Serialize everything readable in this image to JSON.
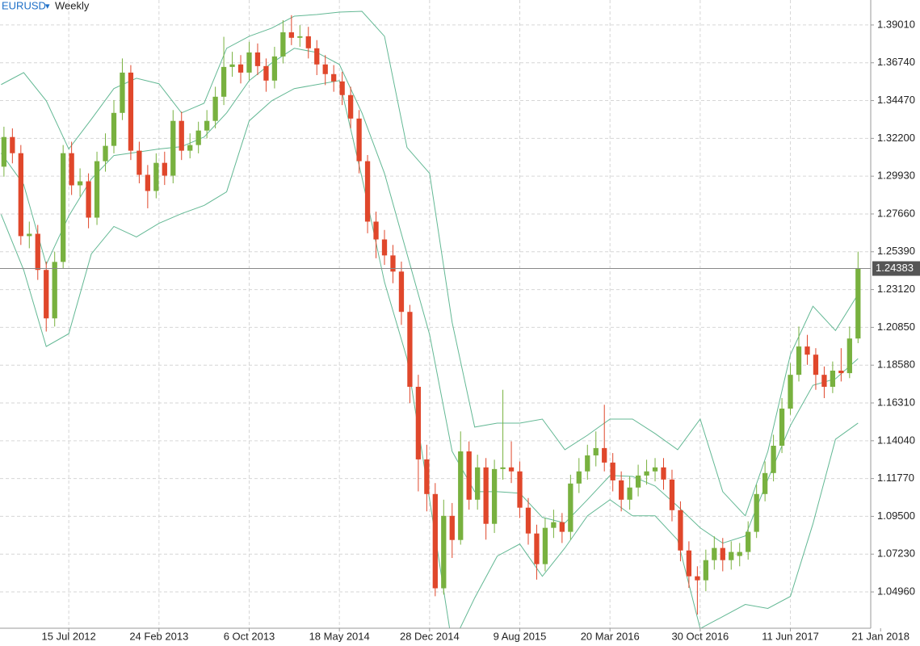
{
  "chart_data": {
    "type": "candlestick",
    "symbol": "EURUSD",
    "timeframe": "Weekly",
    "up_color": "#78b13f",
    "down_color": "#e0472b",
    "x": [
      5,
      8,
      11,
      14,
      17,
      20,
      23,
      26,
      29,
      32,
      35,
      38,
      41,
      44,
      47,
      50,
      53,
      56,
      59,
      62,
      65,
      68,
      71,
      74,
      77,
      80,
      83,
      86,
      89,
      92,
      95,
      98,
      101,
      104,
      107,
      110,
      113,
      116,
      119,
      122,
      125,
      128,
      131,
      134,
      137,
      140,
      143,
      146,
      149,
      152,
      155,
      158,
      161,
      164,
      167,
      170,
      173,
      176,
      179,
      182,
      185,
      188,
      191,
      194,
      197,
      200,
      203,
      206,
      209,
      212,
      215,
      218,
      221,
      224,
      227,
      230,
      233,
      236,
      239,
      242,
      245,
      248,
      251,
      254,
      257,
      260,
      263,
      266,
      269,
      272,
      275,
      278,
      281,
      284,
      287,
      290,
      293,
      296,
      299,
      302,
      305,
      308
    ],
    "open": [
      1.305,
      1.3228,
      1.3131,
      1.2633,
      1.2647,
      1.243,
      1.2139,
      1.2478,
      1.3131,
      1.2938,
      1.2962,
      1.2744,
      1.3083,
      1.3175,
      1.3373,
      1.3615,
      1.3146,
      1.3001,
      1.2904,
      1.3073,
      1.2996,
      1.3325,
      1.3146,
      1.318,
      1.3267,
      1.3325,
      1.347,
      1.3649,
      1.3664,
      1.3615,
      1.3736,
      1.3654,
      1.3567,
      1.3712,
      1.3857,
      1.3824,
      1.3833,
      1.3761,
      1.3664,
      1.3606,
      1.3562,
      1.348,
      1.3339,
      1.3083,
      1.272,
      1.2613,
      1.2517,
      1.242,
      1.2178,
      1.1728,
      1.1292,
      1.1084,
      1.0518,
      1.0953,
      1.0808,
      1.134,
      1.105,
      1.1244,
      1.0905,
      1.1234,
      1.1244,
      1.122,
      1.1002,
      1.0847,
      1.0663,
      1.0881,
      1.0915,
      1.0857,
      1.1147,
      1.122,
      1.1316,
      1.136,
      1.1273,
      1.1166,
      1.105,
      1.1123,
      1.1195,
      1.122,
      1.1244,
      1.1171,
      1.0987,
      1.0745,
      1.059,
      1.0566,
      1.0687,
      1.076,
      1.0687,
      1.0712,
      1.0736,
      1.0857,
      1.1084,
      1.121,
      1.1374,
      1.1597,
      1.18,
      1.197,
      1.1921,
      1.18,
      1.1728,
      1.1825,
      1.181,
      1.2018
    ],
    "high": [
      1.329,
      1.328,
      1.318,
      1.272,
      1.27,
      1.248,
      1.254,
      1.318,
      1.32,
      1.304,
      1.301,
      1.314,
      1.325,
      1.345,
      1.37,
      1.366,
      1.32,
      1.306,
      1.313,
      1.314,
      1.339,
      1.338,
      1.325,
      1.332,
      1.339,
      1.353,
      1.383,
      1.374,
      1.372,
      1.38,
      1.379,
      1.37,
      1.377,
      1.393,
      1.396,
      1.39,
      1.389,
      1.381,
      1.372,
      1.366,
      1.362,
      1.353,
      1.339,
      1.312,
      1.278,
      1.267,
      1.258,
      1.248,
      1.222,
      1.18,
      1.138,
      1.115,
      1.105,
      1.103,
      1.146,
      1.14,
      1.132,
      1.13,
      1.129,
      1.171,
      1.14,
      1.128,
      1.106,
      1.09,
      1.094,
      1.099,
      1.097,
      1.12,
      1.13,
      1.138,
      1.146,
      1.162,
      1.133,
      1.122,
      1.119,
      1.126,
      1.129,
      1.13,
      1.13,
      1.123,
      1.104,
      1.08,
      1.065,
      1.075,
      1.083,
      1.082,
      1.08,
      1.079,
      1.092,
      1.114,
      1.128,
      1.144,
      1.166,
      1.187,
      1.209,
      1.204,
      1.196,
      1.185,
      1.188,
      1.196,
      1.209,
      1.254
    ],
    "low": [
      1.299,
      1.307,
      1.258,
      1.256,
      1.237,
      1.206,
      1.209,
      1.244,
      1.288,
      1.287,
      1.268,
      1.27,
      1.302,
      1.313,
      1.333,
      1.309,
      1.295,
      1.28,
      1.286,
      1.294,
      1.295,
      1.309,
      1.31,
      1.313,
      1.322,
      1.328,
      1.342,
      1.359,
      1.355,
      1.357,
      1.36,
      1.35,
      1.352,
      1.367,
      1.378,
      1.377,
      1.37,
      1.36,
      1.354,
      1.35,
      1.342,
      1.328,
      1.301,
      1.265,
      1.25,
      1.246,
      1.235,
      1.21,
      1.163,
      1.11,
      1.098,
      1.047,
      1.048,
      1.07,
      1.078,
      1.099,
      1.099,
      1.081,
      1.085,
      1.117,
      1.115,
      1.094,
      1.078,
      1.057,
      1.062,
      1.082,
      1.079,
      1.081,
      1.109,
      1.117,
      1.125,
      1.122,
      1.11,
      1.098,
      1.099,
      1.107,
      1.114,
      1.116,
      1.111,
      1.092,
      1.068,
      1.052,
      1.036,
      1.05,
      1.063,
      1.062,
      1.063,
      1.065,
      1.069,
      1.082,
      1.104,
      1.116,
      1.133,
      1.156,
      1.176,
      1.186,
      1.171,
      1.166,
      1.169,
      1.176,
      1.178,
      1.199
    ],
    "close": [
      1.3228,
      1.3131,
      1.2633,
      1.2647,
      1.243,
      1.2139,
      1.2478,
      1.3131,
      1.2938,
      1.2962,
      1.2744,
      1.3083,
      1.3175,
      1.3373,
      1.3615,
      1.3146,
      1.3001,
      1.2904,
      1.3073,
      1.2996,
      1.3325,
      1.3146,
      1.318,
      1.3267,
      1.3325,
      1.347,
      1.3649,
      1.3664,
      1.3615,
      1.3736,
      1.3654,
      1.3567,
      1.3712,
      1.3857,
      1.3824,
      1.3833,
      1.3761,
      1.3664,
      1.3606,
      1.3562,
      1.348,
      1.3339,
      1.3083,
      1.272,
      1.2613,
      1.2517,
      1.242,
      1.2178,
      1.1728,
      1.1292,
      1.1084,
      1.0518,
      1.0953,
      1.0808,
      1.134,
      1.105,
      1.1244,
      1.0905,
      1.1234,
      1.1244,
      1.122,
      1.1002,
      1.0847,
      1.0663,
      1.0881,
      1.0915,
      1.0857,
      1.1147,
      1.122,
      1.1316,
      1.136,
      1.1273,
      1.1166,
      1.105,
      1.1123,
      1.1195,
      1.122,
      1.1244,
      1.1171,
      1.0987,
      1.0745,
      1.059,
      1.0566,
      1.0687,
      1.076,
      1.0687,
      1.0736,
      1.0736,
      1.0857,
      1.1084,
      1.121,
      1.1374,
      1.1597,
      1.18,
      1.197,
      1.1921,
      1.18,
      1.1728,
      1.1825,
      1.181,
      1.2018,
      1.2438
    ],
    "bands": {
      "color": "#63b894",
      "x": [
        4,
        12,
        20,
        28,
        36,
        44,
        52,
        60,
        68,
        76,
        84,
        92,
        100,
        108,
        116,
        124,
        132,
        140,
        148,
        156,
        164,
        172,
        180,
        188,
        196,
        204,
        212,
        220,
        228,
        236,
        244,
        252,
        260,
        268,
        276,
        284,
        292,
        300,
        308
      ],
      "upper": [
        1.3543,
        1.3615,
        1.3446,
        1.3156,
        1.3335,
        1.3519,
        1.3581,
        1.3548,
        1.3373,
        1.3431,
        1.3761,
        1.3833,
        1.3882,
        1.3954,
        1.3964,
        1.3978,
        1.3983,
        1.3833,
        1.3165,
        1.301,
        1.2115,
        1.1486,
        1.151,
        1.151,
        1.1534,
        1.135,
        1.1437,
        1.1534,
        1.1534,
        1.1447,
        1.135,
        1.1534,
        1.1098,
        1.0953,
        1.134,
        1.1921,
        1.2212,
        1.2066,
        1.2284
      ],
      "middle": [
        1.3131,
        1.2943,
        1.2463,
        1.2754,
        1.2976,
        1.3117,
        1.3136,
        1.3156,
        1.317,
        1.3228,
        1.3373,
        1.3567,
        1.3673,
        1.3761,
        1.3736,
        1.3664,
        1.3373,
        1.301,
        1.2526,
        1.2042,
        1.134,
        1.1098,
        1.1098,
        1.1089,
        1.0944,
        1.091,
        1.105,
        1.1195,
        1.119,
        1.1132,
        1.1011,
        1.0881,
        1.0789,
        1.0832,
        1.1171,
        1.1495,
        1.1737,
        1.1776,
        1.1897
      ],
      "lower": [
        1.2763,
        1.243,
        1.197,
        1.2047,
        1.2526,
        1.2691,
        1.2628,
        1.271,
        1.2768,
        1.2817,
        1.2899,
        1.3325,
        1.3446,
        1.3519,
        1.3543,
        1.3567,
        1.2986,
        1.2357,
        1.1897,
        1.105,
        1.0179,
        1.046,
        1.0711,
        1.0784,
        1.059,
        1.076,
        1.0953,
        1.105,
        1.0953,
        1.0953,
        1.0808,
        1.0276,
        1.0348,
        1.0421,
        1.0397,
        1.0469,
        1.0905,
        1.1413,
        1.151
      ]
    },
    "last_price": 1.24383,
    "xlim": [
      3.6,
      312.5
    ],
    "ylim": [
      1.0278,
      1.4051
    ],
    "xticks": [
      {
        "value": 28,
        "label": "15 Jul 2012"
      },
      {
        "value": 60,
        "label": "24 Feb 2013"
      },
      {
        "value": 92,
        "label": "6 Oct 2013"
      },
      {
        "value": 124,
        "label": "18 May 2014"
      },
      {
        "value": 156,
        "label": "28 Dec 2014"
      },
      {
        "value": 188,
        "label": "9 Aug 2015"
      },
      {
        "value": 220,
        "label": "20 Mar 2016"
      },
      {
        "value": 252,
        "label": "30 Oct 2016"
      },
      {
        "value": 284,
        "label": "11 Jun 2017"
      },
      {
        "value": 316,
        "label": "21 Jan 2018"
      }
    ],
    "yticks": [
      {
        "value": 1.3901,
        "label": "1.39010"
      },
      {
        "value": 1.3674,
        "label": "1.36740"
      },
      {
        "value": 1.3447,
        "label": "1.34470"
      },
      {
        "value": 1.322,
        "label": "1.32200"
      },
      {
        "value": 1.2993,
        "label": "1.29930"
      },
      {
        "value": 1.2766,
        "label": "1.27660"
      },
      {
        "value": 1.2539,
        "label": "1.25390"
      },
      {
        "value": 1.2312,
        "label": "1.23120"
      },
      {
        "value": 1.2085,
        "label": "1.20850"
      },
      {
        "value": 1.1858,
        "label": "1.18580"
      },
      {
        "value": 1.1631,
        "label": "1.16310"
      },
      {
        "value": 1.1404,
        "label": "1.14040"
      },
      {
        "value": 1.1177,
        "label": "1.11770"
      },
      {
        "value": 1.095,
        "label": "1.09500"
      },
      {
        "value": 1.0723,
        "label": "1.07230"
      },
      {
        "value": 1.0496,
        "label": "1.04960"
      }
    ],
    "grid": true
  }
}
